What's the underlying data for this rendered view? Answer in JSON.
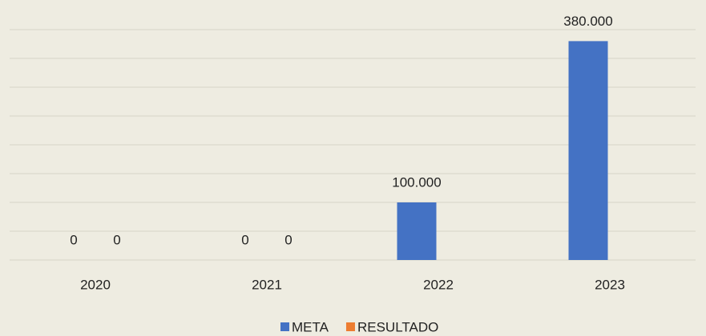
{
  "chart_data": {
    "type": "bar",
    "categories": [
      "2020",
      "2021",
      "2022",
      "2023"
    ],
    "series": [
      {
        "name": "META",
        "color": "#4472c4",
        "values": [
          0,
          0,
          100000,
          380000
        ],
        "value_labels": [
          "0",
          "0",
          "100.000",
          "380.000"
        ]
      },
      {
        "name": "RESULTADO",
        "color": "#ed7d31",
        "values": [
          0,
          0,
          null,
          null
        ],
        "value_labels": [
          "0",
          "0",
          null,
          null
        ]
      }
    ],
    "ylim": [
      0,
      400000
    ],
    "yticks": [
      0,
      50000,
      100000,
      150000,
      200000,
      250000,
      300000,
      350000,
      400000
    ],
    "grid": true,
    "legend": "bottom"
  }
}
